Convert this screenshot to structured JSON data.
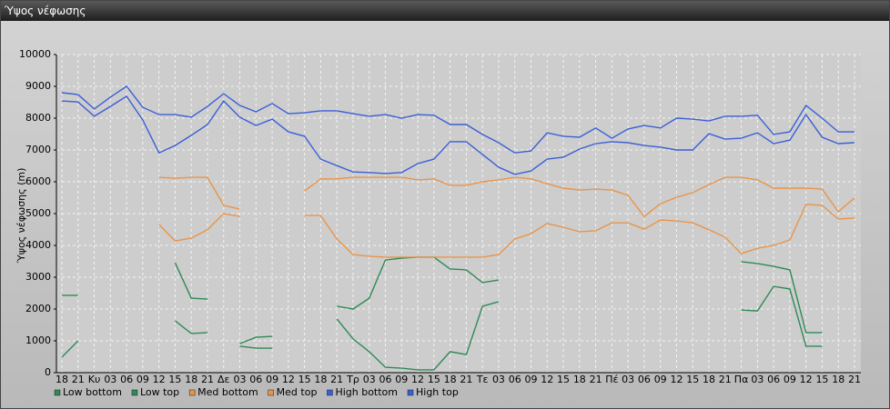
{
  "chart_data": {
    "type": "line",
    "title": "Ύψος νέφωσης",
    "y_label": "Ύψος νέφωσης (m)",
    "categories": [
      "18",
      "21",
      "Κυ",
      "03",
      "06",
      "09",
      "12",
      "15",
      "18",
      "21",
      "Δε",
      "03",
      "06",
      "09",
      "12",
      "15",
      "18",
      "21",
      "Τρ",
      "03",
      "06",
      "09",
      "12",
      "15",
      "18",
      "21",
      "Τε",
      "03",
      "06",
      "09",
      "12",
      "15",
      "18",
      "21",
      "Πέ",
      "03",
      "06",
      "09",
      "12",
      "15",
      "18",
      "21",
      "Πα",
      "03",
      "06",
      "09",
      "12",
      "15",
      "18",
      "21"
    ],
    "ylim": [
      0,
      10000
    ],
    "yticks": [
      0,
      1000,
      2000,
      3000,
      4000,
      5000,
      6000,
      7000,
      8000,
      9000,
      10000
    ],
    "grid": true,
    "legend": "bottom-left",
    "series": [
      {
        "name": "Low bottom",
        "color": "#2f8a55",
        "values": [
          490,
          1000,
          null,
          null,
          null,
          null,
          null,
          1630,
          1230,
          1260,
          null,
          830,
          770,
          770,
          null,
          null,
          null,
          1690,
          1060,
          660,
          170,
          140,
          90,
          90,
          660,
          570,
          2090,
          2230,
          null,
          null,
          null,
          null,
          null,
          null,
          null,
          null,
          null,
          null,
          null,
          null,
          null,
          null,
          1970,
          1940,
          2710,
          2630,
          830,
          830,
          null,
          null
        ]
      },
      {
        "name": "Low top",
        "color": "#2f8a55",
        "values": [
          2430,
          2430,
          null,
          null,
          null,
          null,
          null,
          3460,
          2340,
          2310,
          null,
          910,
          1110,
          1140,
          null,
          null,
          null,
          2090,
          2000,
          2340,
          3540,
          3600,
          3630,
          3630,
          3260,
          3230,
          2830,
          2910,
          null,
          null,
          null,
          null,
          null,
          null,
          null,
          null,
          null,
          null,
          null,
          null,
          null,
          null,
          3490,
          3430,
          3340,
          3230,
          1260,
          1260,
          null,
          null
        ]
      },
      {
        "name": "Med bottom",
        "color": "#e8954a",
        "values": [
          null,
          null,
          null,
          null,
          null,
          null,
          4660,
          4140,
          4230,
          4490,
          5000,
          4910,
          null,
          null,
          null,
          4940,
          4940,
          4200,
          3710,
          3660,
          3630,
          3630,
          3630,
          3630,
          3630,
          3630,
          3630,
          3710,
          4200,
          4370,
          4690,
          4570,
          4430,
          4460,
          4710,
          4710,
          4510,
          4800,
          4770,
          4710,
          4490,
          4260,
          3740,
          3910,
          4000,
          4170,
          5290,
          5260,
          4830,
          4860
        ]
      },
      {
        "name": "Med top",
        "color": "#e8954a",
        "values": [
          null,
          null,
          null,
          null,
          null,
          null,
          6140,
          6110,
          6140,
          6140,
          5260,
          5140,
          null,
          null,
          null,
          5710,
          6090,
          6090,
          6140,
          6140,
          6140,
          6140,
          6060,
          6090,
          5890,
          5890,
          6000,
          6060,
          6140,
          6090,
          5940,
          5800,
          5740,
          5770,
          5740,
          5570,
          4910,
          5310,
          5510,
          5660,
          5910,
          6140,
          6140,
          6060,
          5800,
          5800,
          5800,
          5770,
          5060,
          5490
        ]
      },
      {
        "name": "High bottom",
        "color": "#3a5fd6",
        "values": [
          8540,
          8510,
          8060,
          8370,
          8690,
          7940,
          6910,
          7140,
          7460,
          7800,
          8540,
          8030,
          7770,
          7970,
          7570,
          7430,
          6710,
          6510,
          6310,
          6290,
          6260,
          6290,
          6570,
          6710,
          7260,
          7260,
          6860,
          6460,
          6230,
          6340,
          6710,
          6770,
          7030,
          7200,
          7260,
          7230,
          7140,
          7090,
          7000,
          7000,
          7510,
          7340,
          7370,
          7540,
          7200,
          7310,
          8110,
          7400,
          7200,
          7230
        ]
      },
      {
        "name": "High top",
        "color": "#3a5fd6",
        "values": [
          8800,
          8740,
          8290,
          8660,
          9000,
          8340,
          8110,
          8110,
          8030,
          8370,
          8770,
          8400,
          8200,
          8460,
          8140,
          8170,
          8230,
          8230,
          8140,
          8060,
          8110,
          8000,
          8110,
          8090,
          7800,
          7800,
          7490,
          7230,
          6910,
          6970,
          7540,
          7430,
          7400,
          7690,
          7370,
          7660,
          7770,
          7690,
          8000,
          7970,
          7910,
          8060,
          8060,
          8090,
          7490,
          7570,
          8400,
          8000,
          7570,
          7570
        ]
      }
    ]
  }
}
